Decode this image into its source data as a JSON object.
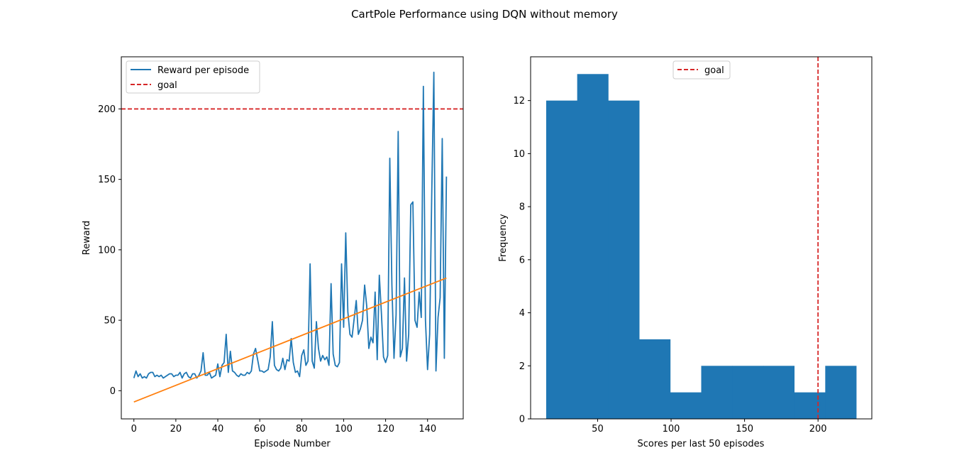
{
  "figure": {
    "title": "CartPole Performance using DQN without memory"
  },
  "chart_data": [
    {
      "type": "line",
      "xlabel": "Episode Number",
      "ylabel": "Reward",
      "xlim": [
        -6,
        157
      ],
      "ylim": [
        -20,
        237
      ],
      "xticks": [
        0,
        20,
        40,
        60,
        80,
        100,
        120,
        140
      ],
      "yticks": [
        0,
        50,
        100,
        150,
        200
      ],
      "legend": "top-left",
      "grid": false,
      "series": [
        {
          "name": "Reward per episode",
          "color": "#1f77b4",
          "style": "solid",
          "x": [
            0,
            1,
            2,
            3,
            4,
            5,
            6,
            7,
            8,
            9,
            10,
            11,
            12,
            13,
            14,
            15,
            16,
            17,
            18,
            19,
            20,
            21,
            22,
            23,
            24,
            25,
            26,
            27,
            28,
            29,
            30,
            31,
            32,
            33,
            34,
            35,
            36,
            37,
            38,
            39,
            40,
            41,
            42,
            43,
            44,
            45,
            46,
            47,
            48,
            49,
            50,
            51,
            52,
            53,
            54,
            55,
            56,
            57,
            58,
            59,
            60,
            61,
            62,
            63,
            64,
            65,
            66,
            67,
            68,
            69,
            70,
            71,
            72,
            73,
            74,
            75,
            76,
            77,
            78,
            79,
            80,
            81,
            82,
            83,
            84,
            85,
            86,
            87,
            88,
            89,
            90,
            91,
            92,
            93,
            94,
            95,
            96,
            97,
            98,
            99,
            100,
            101,
            102,
            103,
            104,
            105,
            106,
            107,
            108,
            109,
            110,
            111,
            112,
            113,
            114,
            115,
            116,
            117,
            118,
            119,
            120,
            121,
            122,
            123,
            124,
            125,
            126,
            127,
            128,
            129,
            130,
            131,
            132,
            133,
            134,
            135,
            136,
            137,
            138,
            139,
            140,
            141,
            142,
            143,
            144,
            145,
            146,
            147,
            148,
            149
          ],
          "y": [
            9,
            14,
            10,
            12,
            9,
            10,
            9,
            12,
            13,
            13,
            10,
            11,
            10,
            11,
            9,
            10,
            11,
            12,
            12,
            10,
            11,
            11,
            13,
            9,
            12,
            13,
            10,
            9,
            12,
            12,
            9,
            11,
            14,
            27,
            11,
            11,
            13,
            9,
            10,
            11,
            19,
            10,
            18,
            20,
            40,
            13,
            28,
            14,
            13,
            11,
            10,
            12,
            11,
            11,
            13,
            12,
            14,
            26,
            30,
            22,
            14,
            14,
            13,
            14,
            15,
            24,
            49,
            18,
            15,
            14,
            16,
            23,
            15,
            22,
            21,
            37,
            20,
            13,
            14,
            10,
            25,
            29,
            18,
            21,
            90,
            21,
            16,
            49,
            30,
            21,
            25,
            22,
            24,
            18,
            76,
            26,
            18,
            17,
            20,
            90,
            45,
            112,
            56,
            40,
            38,
            51,
            64,
            40,
            44,
            50,
            75,
            60,
            30,
            38,
            34,
            70,
            22,
            82,
            55,
            24,
            20,
            25,
            165,
            75,
            23,
            54,
            184,
            24,
            30,
            80,
            21,
            40,
            132,
            134,
            50,
            45,
            70,
            52,
            216,
            50,
            15,
            40,
            140,
            226,
            14,
            52,
            66,
            179,
            23,
            152
          ]
        },
        {
          "name": "",
          "color": "#ff7f0e",
          "style": "solid",
          "x": [
            0,
            149
          ],
          "y": [
            -8,
            80
          ]
        }
      ],
      "hlines": [
        {
          "name": "goal",
          "y": 200,
          "color": "#d62728",
          "style": "dashed"
        }
      ]
    },
    {
      "type": "bar",
      "xlabel": "Scores per last 50 episodes",
      "ylabel": "Frequency",
      "xlim": [
        4.4,
        236.6
      ],
      "ylim": [
        0,
        13.65
      ],
      "xticks": [
        50,
        100,
        150,
        200
      ],
      "yticks": [
        0,
        2,
        4,
        6,
        8,
        10,
        12
      ],
      "legend": "top-center",
      "grid": false,
      "bins": [
        {
          "start": 15,
          "end": 36.1,
          "count": 12
        },
        {
          "start": 36.1,
          "end": 57.2,
          "count": 13
        },
        {
          "start": 57.2,
          "end": 78.3,
          "count": 12
        },
        {
          "start": 78.3,
          "end": 99.4,
          "count": 3
        },
        {
          "start": 99.4,
          "end": 120.5,
          "count": 1
        },
        {
          "start": 120.5,
          "end": 141.6,
          "count": 2
        },
        {
          "start": 141.6,
          "end": 162.7,
          "count": 2
        },
        {
          "start": 162.7,
          "end": 183.8,
          "count": 2
        },
        {
          "start": 183.8,
          "end": 204.9,
          "count": 1
        },
        {
          "start": 204.9,
          "end": 226,
          "count": 2
        }
      ],
      "bar_color": "#1f77b4",
      "vlines": [
        {
          "name": "goal",
          "x": 200,
          "color": "#d62728",
          "style": "dashed"
        }
      ]
    }
  ]
}
